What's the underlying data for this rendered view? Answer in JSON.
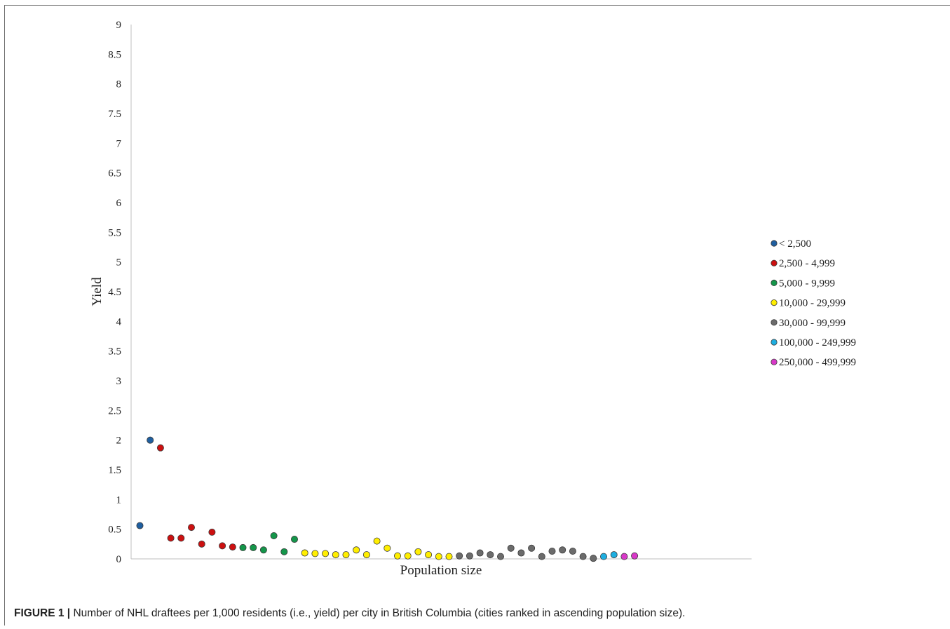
{
  "caption": {
    "label": "FIGURE 1 |",
    "text": " Number of NHL draftees per 1,000 residents (i.e., yield) per city in British Columbia (cities ranked in ascending population size)."
  },
  "chart_data": {
    "type": "scatter",
    "title": "",
    "xlabel": "Population size",
    "ylabel": "Yield",
    "ylim": [
      0,
      9
    ],
    "yticks": [
      "0",
      "0.5",
      "1",
      "1.5",
      "2",
      "2.5",
      "3",
      "3.5",
      "4",
      "4.5",
      "5",
      "5.5",
      "6",
      "6.5",
      "7",
      "7.5",
      "8",
      "8.5",
      "9"
    ],
    "x_ticks_shown": false,
    "grid": false,
    "legend_position": "right",
    "series": [
      {
        "name": "< 2,500",
        "color": "#1f5fa0",
        "x": [
          1,
          2
        ],
        "y": [
          0.56,
          2.0
        ]
      },
      {
        "name": "2,500 - 4,999",
        "color": "#cc1010",
        "x": [
          3,
          4,
          5,
          6,
          7,
          8,
          9,
          10
        ],
        "y": [
          1.87,
          0.35,
          0.35,
          0.53,
          0.25,
          0.45,
          0.22,
          0.2
        ]
      },
      {
        "name": "5,000 - 9,999",
        "color": "#14964a",
        "x": [
          11,
          12,
          13,
          14,
          15,
          16
        ],
        "y": [
          0.19,
          0.19,
          0.15,
          0.39,
          0.12,
          0.33
        ]
      },
      {
        "name": "10,000 - 29,999",
        "color": "#ffee00",
        "x": [
          17,
          18,
          19,
          20,
          21,
          22,
          23,
          24,
          25,
          26,
          27,
          28,
          29,
          30,
          31
        ],
        "y": [
          0.1,
          0.09,
          0.09,
          0.07,
          0.07,
          0.15,
          0.07,
          0.3,
          0.18,
          0.05,
          0.05,
          0.12,
          0.07,
          0.04,
          0.04
        ]
      },
      {
        "name": "30,000 - 99,999",
        "color": "#6b6b6b",
        "x": [
          32,
          33,
          34,
          35,
          36,
          37,
          38,
          39,
          40,
          41,
          42,
          43,
          44,
          45
        ],
        "y": [
          0.05,
          0.05,
          0.1,
          0.07,
          0.04,
          0.18,
          0.1,
          0.18,
          0.04,
          0.13,
          0.15,
          0.13,
          0.04,
          0.01
        ]
      },
      {
        "name": "100,000 - 249,999",
        "color": "#1eaee0",
        "x": [
          46,
          47
        ],
        "y": [
          0.04,
          0.07
        ]
      },
      {
        "name": "250,000 - 499,999",
        "color": "#d838c8",
        "x": [
          48,
          49
        ],
        "y": [
          0.04,
          0.05
        ]
      }
    ]
  }
}
